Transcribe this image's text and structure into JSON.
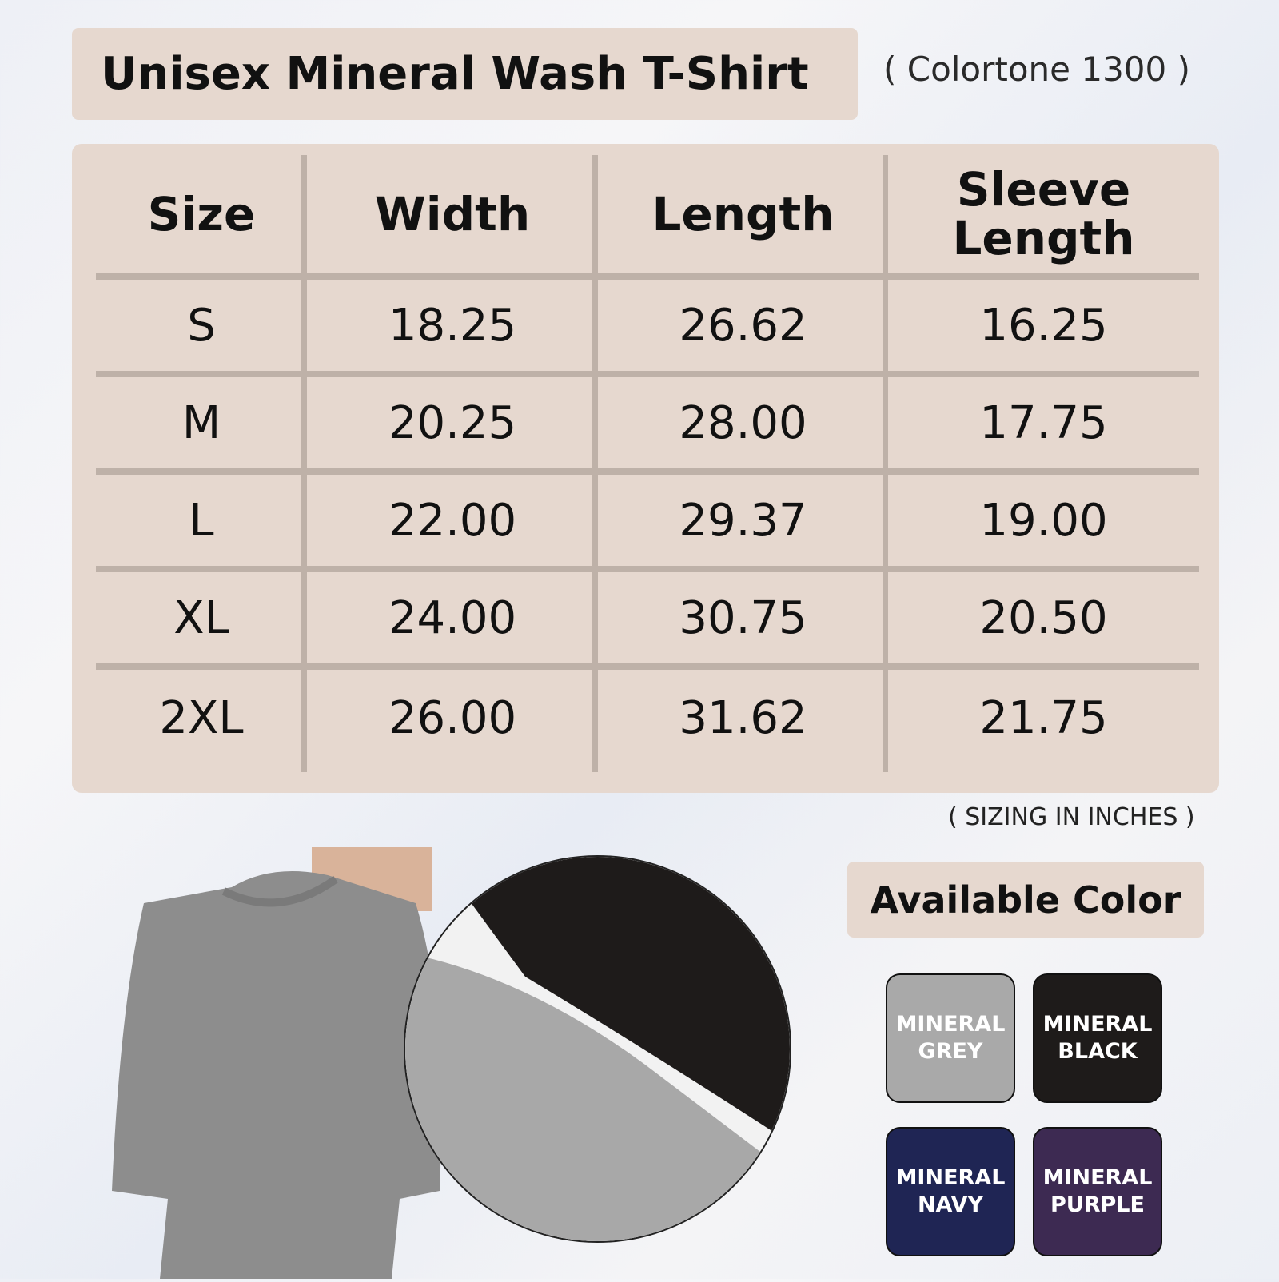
{
  "title": "Unisex Mineral Wash T-Shirt",
  "subtitle": "( Colortone 1300 )",
  "table": {
    "headers": [
      "Size",
      "Width",
      "Length",
      "Sleeve Length"
    ],
    "rows": [
      [
        "S",
        "18.25",
        "26.62",
        "16.25"
      ],
      [
        "M",
        "20.25",
        "28.00",
        "17.75"
      ],
      [
        "L",
        "22.00",
        "29.37",
        "19.00"
      ],
      [
        "XL",
        "24.00",
        "30.75",
        "20.50"
      ],
      [
        "2XL",
        "26.00",
        "31.62",
        "21.75"
      ]
    ]
  },
  "note": "( SIZING IN INCHES )",
  "colors_title": "Available Color",
  "colors": [
    {
      "label": "MINERAL GREY",
      "hex": "#a9a9a9"
    },
    {
      "label": "MINERAL BLACK",
      "hex": "#1e1b1a"
    },
    {
      "label": "MINERAL NAVY",
      "hex": "#1f2554"
    },
    {
      "label": "MINERAL PURPLE",
      "hex": "#3d2a52"
    }
  ]
}
